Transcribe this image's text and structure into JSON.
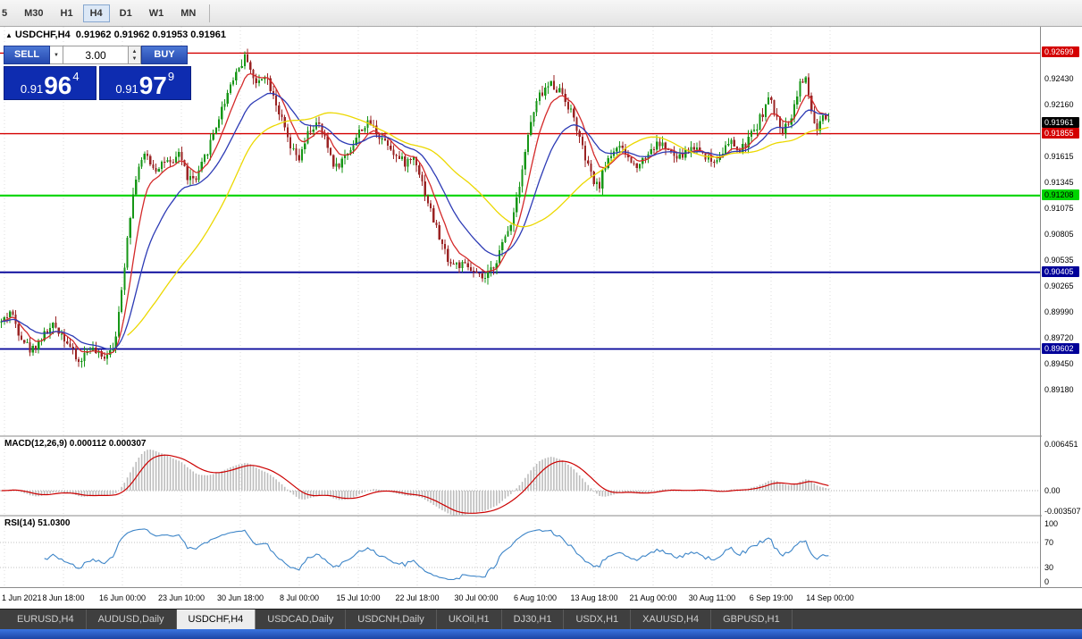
{
  "toolbar": {
    "timeframes": [
      {
        "label": "5",
        "active": false,
        "clipped": true
      },
      {
        "label": "M30",
        "active": false
      },
      {
        "label": "H1",
        "active": false
      },
      {
        "label": "H4",
        "active": true
      },
      {
        "label": "D1",
        "active": false
      },
      {
        "label": "W1",
        "active": false
      },
      {
        "label": "MN",
        "active": false
      }
    ]
  },
  "chart_header": {
    "direction_icon": "▲",
    "symbol": "USDCHF,H4",
    "ohlc": "0.91962 0.91962 0.91953 0.91961"
  },
  "trade_panel": {
    "sell_label": "SELL",
    "buy_label": "BUY",
    "volume": "3.00",
    "icons": {
      "dropdown": "▼",
      "spin_up": "▲",
      "spin_down": "▼"
    },
    "sell_price": {
      "big": "0.91",
      "pips": "96",
      "pt": "4"
    },
    "buy_price": {
      "big": "0.91",
      "pips": "97",
      "pt": "9"
    }
  },
  "price_axis": {
    "ticks": [
      "0.92430",
      "0.92160",
      "0.91615",
      "0.91345",
      "0.91075",
      "0.90805",
      "0.90535",
      "0.90265",
      "0.89990",
      "0.89720",
      "0.89450",
      "0.89180"
    ],
    "badges": [
      {
        "text": "0.92699",
        "bg": "#d40000",
        "fg": "#ffffff"
      },
      {
        "text": "0.91961",
        "bg": "#000000",
        "fg": "#ffffff"
      },
      {
        "text": "0.91855",
        "bg": "#d40000",
        "fg": "#ffffff"
      },
      {
        "text": "0.91208",
        "bg": "#00d400",
        "fg": "#000000"
      },
      {
        "text": "0.90405",
        "bg": "#000099",
        "fg": "#ffffff"
      },
      {
        "text": "0.89602",
        "bg": "#000099",
        "fg": "#ffffff"
      }
    ]
  },
  "macd_panel": {
    "label": "MACD(12,26,9) 0.000112 0.000307",
    "axis": [
      "0.006451",
      "0.00",
      "-0.003507"
    ],
    "hist_color": "#bdbdbd",
    "signal_color": "#cc0000"
  },
  "rsi_panel": {
    "label": "RSI(14) 51.0300",
    "axis": [
      "100",
      "70",
      "30",
      "0"
    ],
    "line_color": "#3d85c8",
    "levels": [
      70,
      30
    ]
  },
  "time_axis": [
    "1 Jun 2021",
    "8 Jun 18:00",
    "16 Jun 00:00",
    "23 Jun 10:00",
    "30 Jun 18:00",
    "8 Jul 00:00",
    "15 Jul 10:00",
    "22 Jul 18:00",
    "30 Jul 00:00",
    "6 Aug 10:00",
    "13 Aug 18:00",
    "21 Aug 00:00",
    "30 Aug 11:00",
    "6 Sep 19:00",
    "14 Sep 00:00"
  ],
  "tabs": [
    {
      "label": "EURUSD,H4",
      "active": false
    },
    {
      "label": "AUDUSD,Daily",
      "active": false
    },
    {
      "label": "USDCHF,H4",
      "active": true
    },
    {
      "label": "USDCAD,Daily",
      "active": false
    },
    {
      "label": "USDCNH,Daily",
      "active": false
    },
    {
      "label": "UKOil,H1",
      "active": false
    },
    {
      "label": "DJ30,H1",
      "active": false
    },
    {
      "label": "USDX,H1",
      "active": false
    },
    {
      "label": "XAUUSD,H4",
      "active": false
    },
    {
      "label": "GBPUSD,H1",
      "active": false
    }
  ],
  "chart_data": {
    "type": "candlestick",
    "symbol": "USDCHF",
    "timeframe": "H4",
    "current_price": 0.91961,
    "visible_range": {
      "price_top": 0.9288,
      "price_bottom": 0.887
    },
    "num_candles": 290,
    "style": {
      "bull": "#169616",
      "bear": "#9a2323",
      "grid": "#dcdcdc"
    },
    "horizontal_lines": [
      {
        "price": 0.92699,
        "color": "#d40000",
        "width": 1.4
      },
      {
        "price": 0.91855,
        "color": "#d40000",
        "width": 1.4
      },
      {
        "price": 0.91208,
        "color": "#00d400",
        "width": 2.2
      },
      {
        "price": 0.90405,
        "color": "#000099",
        "width": 1.8
      },
      {
        "price": 0.89602,
        "color": "#000099",
        "width": 1.8
      }
    ],
    "moving_averages": [
      {
        "period": 8,
        "type": "ema",
        "color": "#d42a2a"
      },
      {
        "period": 21,
        "type": "ema",
        "color": "#2d3bb5"
      },
      {
        "period": 45,
        "type": "sma",
        "color": "#ecd800"
      }
    ],
    "indicators": {
      "macd": {
        "fast": 12,
        "slow": 26,
        "signal": 9,
        "values": [
          0.000112,
          0.000307
        ]
      },
      "rsi": {
        "period": 14,
        "value": 51.03
      }
    },
    "waypoints": [
      [
        0,
        0.8988
      ],
      [
        0.15,
        0.9
      ],
      [
        0.3,
        0.8978
      ],
      [
        0.5,
        0.8958
      ],
      [
        0.7,
        0.8974
      ],
      [
        0.9,
        0.8985
      ],
      [
        1.1,
        0.897
      ],
      [
        1.3,
        0.8945
      ],
      [
        1.5,
        0.8962
      ],
      [
        1.7,
        0.895
      ],
      [
        1.9,
        0.8965
      ],
      [
        2.0,
        0.9
      ],
      [
        2.15,
        0.909
      ],
      [
        2.3,
        0.915
      ],
      [
        2.45,
        0.9163
      ],
      [
        2.6,
        0.9148
      ],
      [
        2.75,
        0.9158
      ],
      [
        2.9,
        0.915
      ],
      [
        3.0,
        0.9168
      ],
      [
        3.15,
        0.914
      ],
      [
        3.3,
        0.9136
      ],
      [
        3.45,
        0.9162
      ],
      [
        3.6,
        0.9188
      ],
      [
        3.75,
        0.9215
      ],
      [
        3.9,
        0.9242
      ],
      [
        4.05,
        0.9258
      ],
      [
        4.15,
        0.9268
      ],
      [
        4.3,
        0.9235
      ],
      [
        4.45,
        0.925
      ],
      [
        4.6,
        0.9228
      ],
      [
        4.75,
        0.9198
      ],
      [
        4.9,
        0.9168
      ],
      [
        5.05,
        0.9158
      ],
      [
        5.2,
        0.9188
      ],
      [
        5.35,
        0.9196
      ],
      [
        5.5,
        0.9175
      ],
      [
        5.65,
        0.915
      ],
      [
        5.8,
        0.916
      ],
      [
        5.95,
        0.9175
      ],
      [
        6.1,
        0.9192
      ],
      [
        6.25,
        0.9196
      ],
      [
        6.4,
        0.9183
      ],
      [
        6.55,
        0.9176
      ],
      [
        6.7,
        0.916
      ],
      [
        6.85,
        0.9155
      ],
      [
        7.0,
        0.9162
      ],
      [
        7.15,
        0.9128
      ],
      [
        7.3,
        0.9098
      ],
      [
        7.45,
        0.907
      ],
      [
        7.6,
        0.905
      ],
      [
        7.75,
        0.9048
      ],
      [
        7.9,
        0.9045
      ],
      [
        8.05,
        0.9036
      ],
      [
        8.2,
        0.9033
      ],
      [
        8.35,
        0.905
      ],
      [
        8.5,
        0.9072
      ],
      [
        8.65,
        0.9098
      ],
      [
        8.8,
        0.9145
      ],
      [
        8.95,
        0.9195
      ],
      [
        9.1,
        0.9225
      ],
      [
        9.3,
        0.9238
      ],
      [
        9.5,
        0.9228
      ],
      [
        9.7,
        0.92
      ],
      [
        9.85,
        0.9165
      ],
      [
        10.0,
        0.9138
      ],
      [
        10.1,
        0.9128
      ],
      [
        10.25,
        0.9158
      ],
      [
        10.4,
        0.9172
      ],
      [
        10.55,
        0.9165
      ],
      [
        10.7,
        0.9152
      ],
      [
        10.85,
        0.9158
      ],
      [
        11.0,
        0.917
      ],
      [
        11.15,
        0.9176
      ],
      [
        11.3,
        0.9167
      ],
      [
        11.45,
        0.9158
      ],
      [
        11.6,
        0.9168
      ],
      [
        11.75,
        0.9172
      ],
      [
        11.9,
        0.9164
      ],
      [
        12.05,
        0.9155
      ],
      [
        12.2,
        0.9168
      ],
      [
        12.35,
        0.9176
      ],
      [
        12.5,
        0.9166
      ],
      [
        12.65,
        0.918
      ],
      [
        12.8,
        0.9196
      ],
      [
        13.0,
        0.9224
      ],
      [
        13.1,
        0.9202
      ],
      [
        13.25,
        0.9188
      ],
      [
        13.4,
        0.921
      ],
      [
        13.5,
        0.9238
      ],
      [
        13.6,
        0.9244
      ],
      [
        13.7,
        0.9212
      ],
      [
        13.8,
        0.9186
      ],
      [
        13.9,
        0.9202
      ],
      [
        14.0,
        0.9196
      ]
    ]
  }
}
